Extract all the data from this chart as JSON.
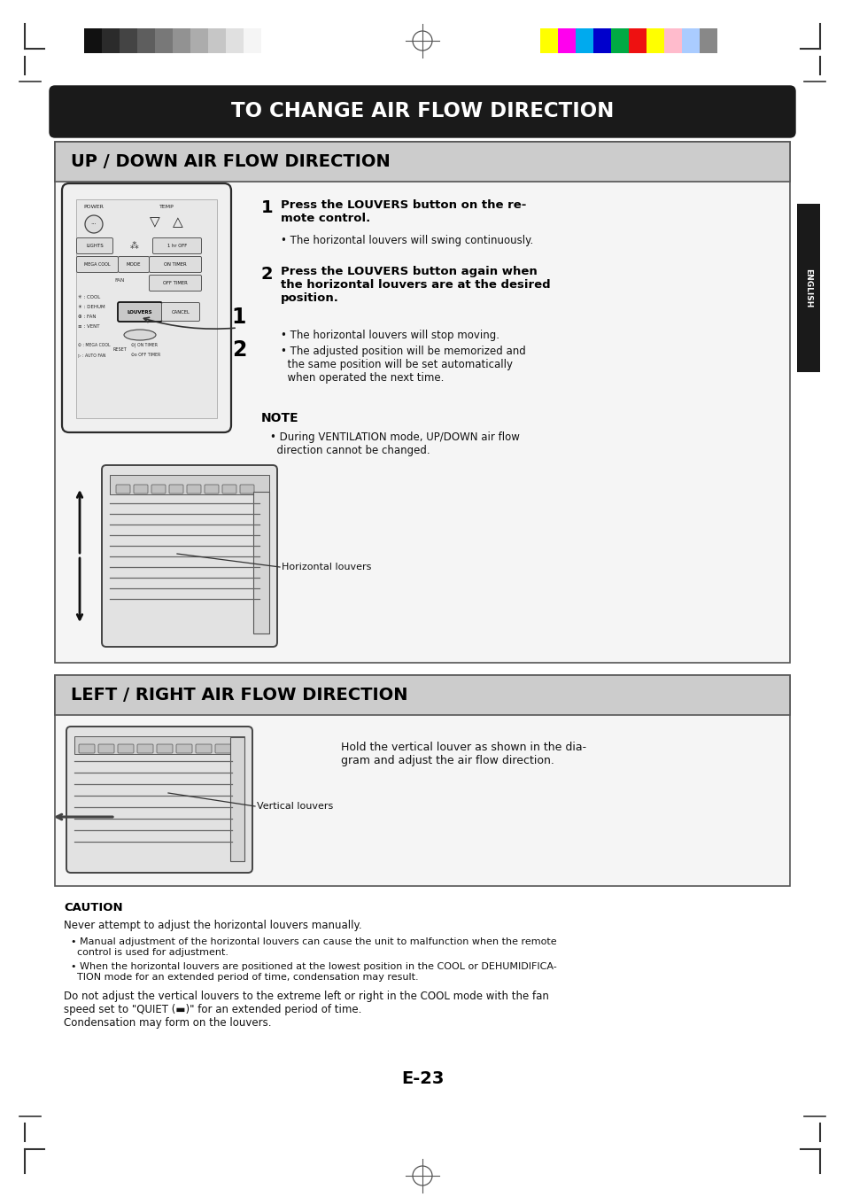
{
  "page_bg": "#ffffff",
  "main_title": "TO CHANGE AIR FLOW DIRECTION",
  "main_title_bg": "#1a1a1a",
  "main_title_color": "#ffffff",
  "s1_title": "UP / DOWN AIR FLOW DIRECTION",
  "s1_title_bg": "#cccccc",
  "s2_title": "LEFT / RIGHT AIR FLOW DIRECTION",
  "s2_title_bg": "#cccccc",
  "eng_tab_bg": "#1a1a1a",
  "eng_tab_txt": "ENGLISH",
  "s1_step1_head1": "Press the LOUVERS button on the re-",
  "s1_step1_head2": "mote control.",
  "s1_step1_b": "• The horizontal louvers will swing continuously.",
  "s1_step2_head1": "Press the LOUVERS button again when",
  "s1_step2_head2": "the horizontal louvers are at the desired",
  "s1_step2_head3": "position.",
  "s1_step2_b1": "• The horizontal louvers will stop moving.",
  "s1_step2_b2a": "• The adjusted position will be memorized and",
  "s1_step2_b2b": "  the same position will be set automatically",
  "s1_step2_b2c": "  when operated the next time.",
  "note_title": "NOTE",
  "note_b": "• During VENTILATION mode, UP/DOWN air flow",
  "note_b2": "  direction cannot be changed.",
  "horiz_label": "Horizontal louvers",
  "s2_desc1": "Hold the vertical louver as shown in the dia-",
  "s2_desc2": "gram and adjust the air flow direction.",
  "vert_label": "Vertical louvers",
  "caution_title": "CAUTION",
  "caution_intro": "Never attempt to adjust the horizontal louvers manually.",
  "caution_b1a": "• Manual adjustment of the horizontal louvers can cause the unit to malfunction when the remote",
  "caution_b1b": "  control is used for adjustment.",
  "caution_b2a": "• When the horizontal louvers are positioned at the lowest position in the COOL or DEHUMIDIFICA-",
  "caution_b2b": "  TION mode for an extended period of time, condensation may result.",
  "caution_p1": "Do not adjust the vertical louvers to the extreme left or right in the COOL mode with the fan",
  "caution_p2": "speed set to \"QUIET (▬)\" for an extended period of time.",
  "caution_p3": "Condensation may form on the louvers.",
  "page_num": "E-23",
  "bw_colors": [
    "#111111",
    "#2b2b2b",
    "#444444",
    "#5e5e5e",
    "#787878",
    "#929292",
    "#acacac",
    "#c6c6c6",
    "#e0e0e0",
    "#f5f5f5",
    "#ffffff"
  ],
  "rgb_colors": [
    "#ffff00",
    "#ff00ee",
    "#00aaee",
    "#0000cc",
    "#00aa44",
    "#ee1111",
    "#ffff00",
    "#ffbbcc",
    "#aaccff",
    "#888888"
  ]
}
